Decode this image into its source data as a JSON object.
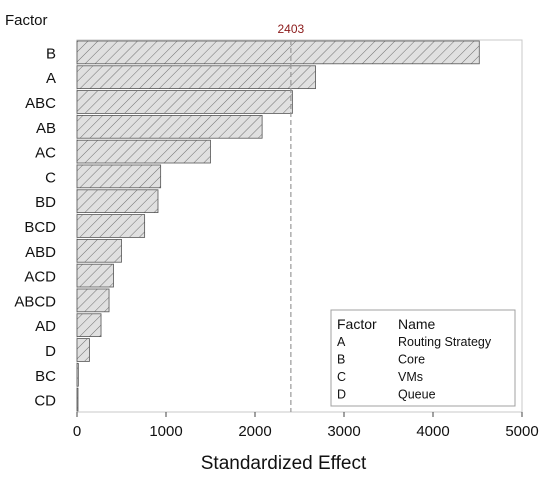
{
  "chart_data": {
    "type": "bar",
    "orientation": "horizontal",
    "categories": [
      "B",
      "A",
      "ABC",
      "AB",
      "AC",
      "C",
      "BD",
      "BCD",
      "ABD",
      "ACD",
      "ABCD",
      "AD",
      "D",
      "BC",
      "CD"
    ],
    "values": [
      4520,
      2680,
      2420,
      2080,
      1500,
      940,
      910,
      760,
      500,
      410,
      360,
      270,
      140,
      15,
      10
    ],
    "reference_line": {
      "value": 2403,
      "label": "2403"
    },
    "category_axis_title": "Factor",
    "xlabel": "Standardized Effect",
    "xlim": [
      0,
      5000
    ],
    "xticks": [
      0,
      1000,
      2000,
      3000,
      4000,
      5000
    ],
    "grid": false,
    "bar_fill": "#e0e0e0",
    "bar_hatch": "diagonal",
    "reference_line_color": "#999999",
    "reference_label_color": "#8b1a1a",
    "legend": {
      "placement": "bottom-right",
      "header": [
        "Factor",
        "Name"
      ],
      "rows": [
        {
          "factor": "A",
          "name": "Routing Strategy"
        },
        {
          "factor": "B",
          "name": "Core"
        },
        {
          "factor": "C",
          "name": "VMs"
        },
        {
          "factor": "D",
          "name": "Queue"
        }
      ]
    }
  }
}
